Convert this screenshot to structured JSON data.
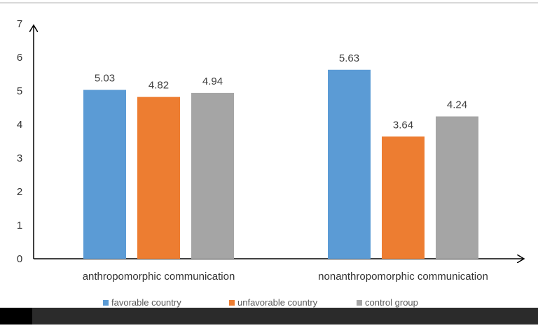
{
  "chart_data": {
    "type": "bar",
    "title": "",
    "xlabel": "",
    "ylabel": "",
    "ylim": [
      0,
      7
    ],
    "yticks": [
      0,
      1,
      2,
      3,
      4,
      5,
      6,
      7
    ],
    "categories": [
      "anthropomorphic communication",
      "nonanthropomorphic communication"
    ],
    "series": [
      {
        "name": "favorable country",
        "color": "#5B9BD5",
        "values": [
          5.03,
          5.63
        ],
        "labels": [
          "5.03",
          "5.63"
        ]
      },
      {
        "name": "unfavorable country",
        "color": "#ED7D31",
        "values": [
          4.82,
          3.64
        ],
        "labels": [
          "4.82",
          "3.64"
        ]
      },
      {
        "name": "control group",
        "color": "#A5A5A5",
        "values": [
          4.94,
          4.24
        ],
        "labels": [
          "4.94",
          "4.24"
        ]
      }
    ],
    "grid": false,
    "legend_position": "bottom"
  }
}
